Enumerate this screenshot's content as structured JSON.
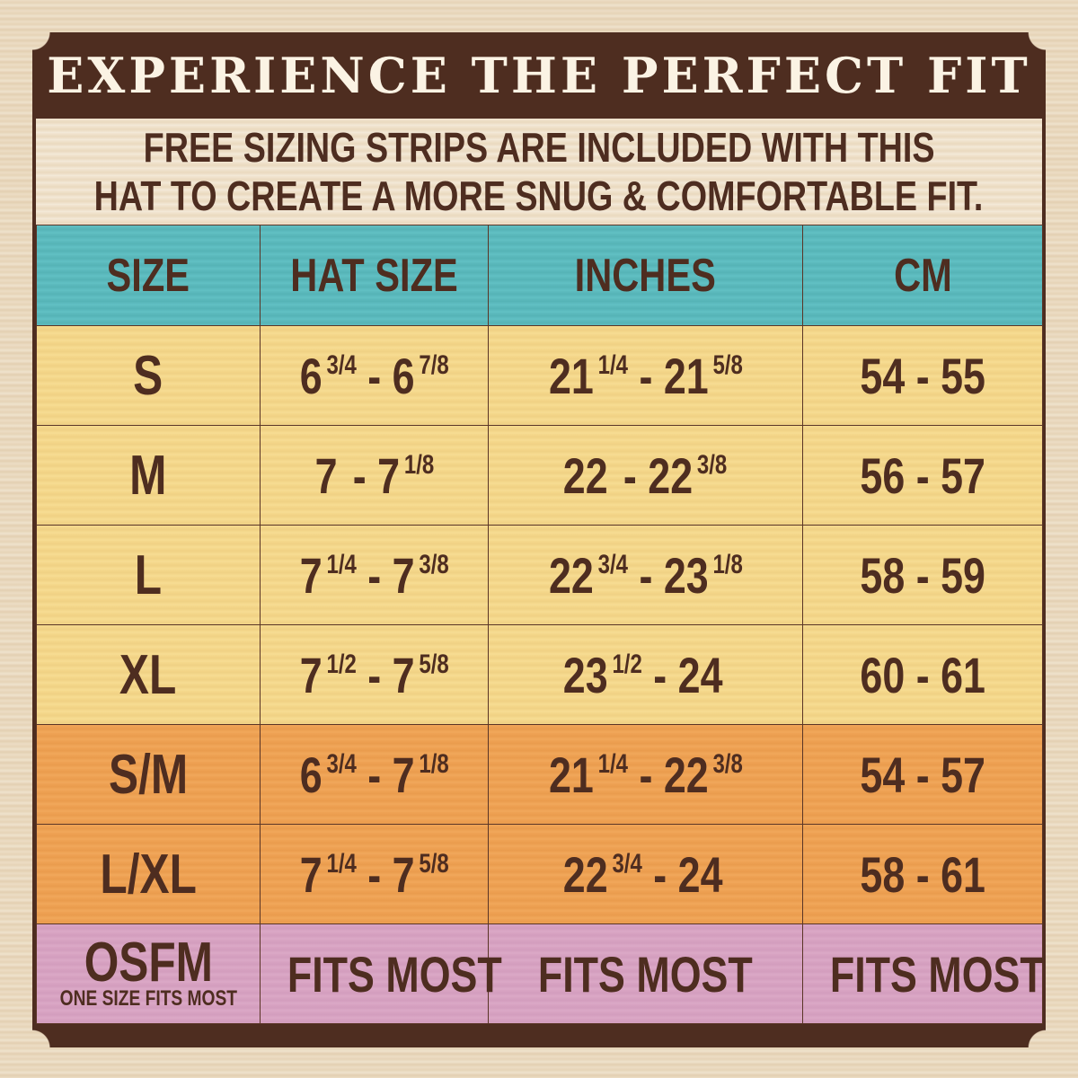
{
  "title": "EXPERIENCE THE PERFECT FIT",
  "subtitle": [
    "FREE SIZING STRIPS ARE INCLUDED WITH THIS",
    "HAT TO CREATE A MORE SNUG & COMFORTABLE FIT."
  ],
  "colors": {
    "frame": "#4e2d20",
    "header": "#5fbec1",
    "single_sizes": "#f6da8e",
    "combo_sizes": "#f0a457",
    "one_size": "#d9a5c4",
    "text": "#4e2d20"
  },
  "headers": [
    "SIZE",
    "HAT SIZE",
    "INCHES",
    "CM"
  ],
  "rows": [
    {
      "group": "yellow",
      "size": "S",
      "hat": [
        {
          "n": "6",
          "f": "3/4"
        },
        {
          "n": "6",
          "f": "7/8"
        }
      ],
      "inches": [
        {
          "n": "21",
          "f": "1/4"
        },
        {
          "n": "21",
          "f": "5/8"
        }
      ],
      "cm": "54 - 55"
    },
    {
      "group": "yellow",
      "size": "M",
      "hat": [
        {
          "n": "7",
          "f": ""
        },
        {
          "n": "7",
          "f": "1/8"
        }
      ],
      "inches": [
        {
          "n": "22",
          "f": ""
        },
        {
          "n": "22",
          "f": "3/8"
        }
      ],
      "cm": "56 - 57"
    },
    {
      "group": "yellow",
      "size": "L",
      "hat": [
        {
          "n": "7",
          "f": "1/4"
        },
        {
          "n": "7",
          "f": "3/8"
        }
      ],
      "inches": [
        {
          "n": "22",
          "f": "3/4"
        },
        {
          "n": "23",
          "f": "1/8"
        }
      ],
      "cm": "58 - 59"
    },
    {
      "group": "yellow",
      "size": "XL",
      "hat": [
        {
          "n": "7",
          "f": "1/2"
        },
        {
          "n": "7",
          "f": "5/8"
        }
      ],
      "inches": [
        {
          "n": "23",
          "f": "1/2"
        },
        {
          "n": "24",
          "f": ""
        }
      ],
      "cm": "60 - 61"
    },
    {
      "group": "orange",
      "size": "S/M",
      "hat": [
        {
          "n": "6",
          "f": "3/4"
        },
        {
          "n": "7",
          "f": "1/8"
        }
      ],
      "inches": [
        {
          "n": "21",
          "f": "1/4"
        },
        {
          "n": "22",
          "f": "3/8"
        }
      ],
      "cm": "54 - 57"
    },
    {
      "group": "orange",
      "size": "L/XL",
      "hat": [
        {
          "n": "7",
          "f": "1/4"
        },
        {
          "n": "7",
          "f": "5/8"
        }
      ],
      "inches": [
        {
          "n": "22",
          "f": "3/4"
        },
        {
          "n": "24",
          "f": ""
        }
      ],
      "cm": "58 - 61"
    }
  ],
  "osfm": {
    "size": "OSFM",
    "size_note": "ONE SIZE FITS MOST",
    "hat": "FITS MOST",
    "inches": "FITS MOST",
    "cm": "FITS MOST"
  },
  "separator": "-"
}
